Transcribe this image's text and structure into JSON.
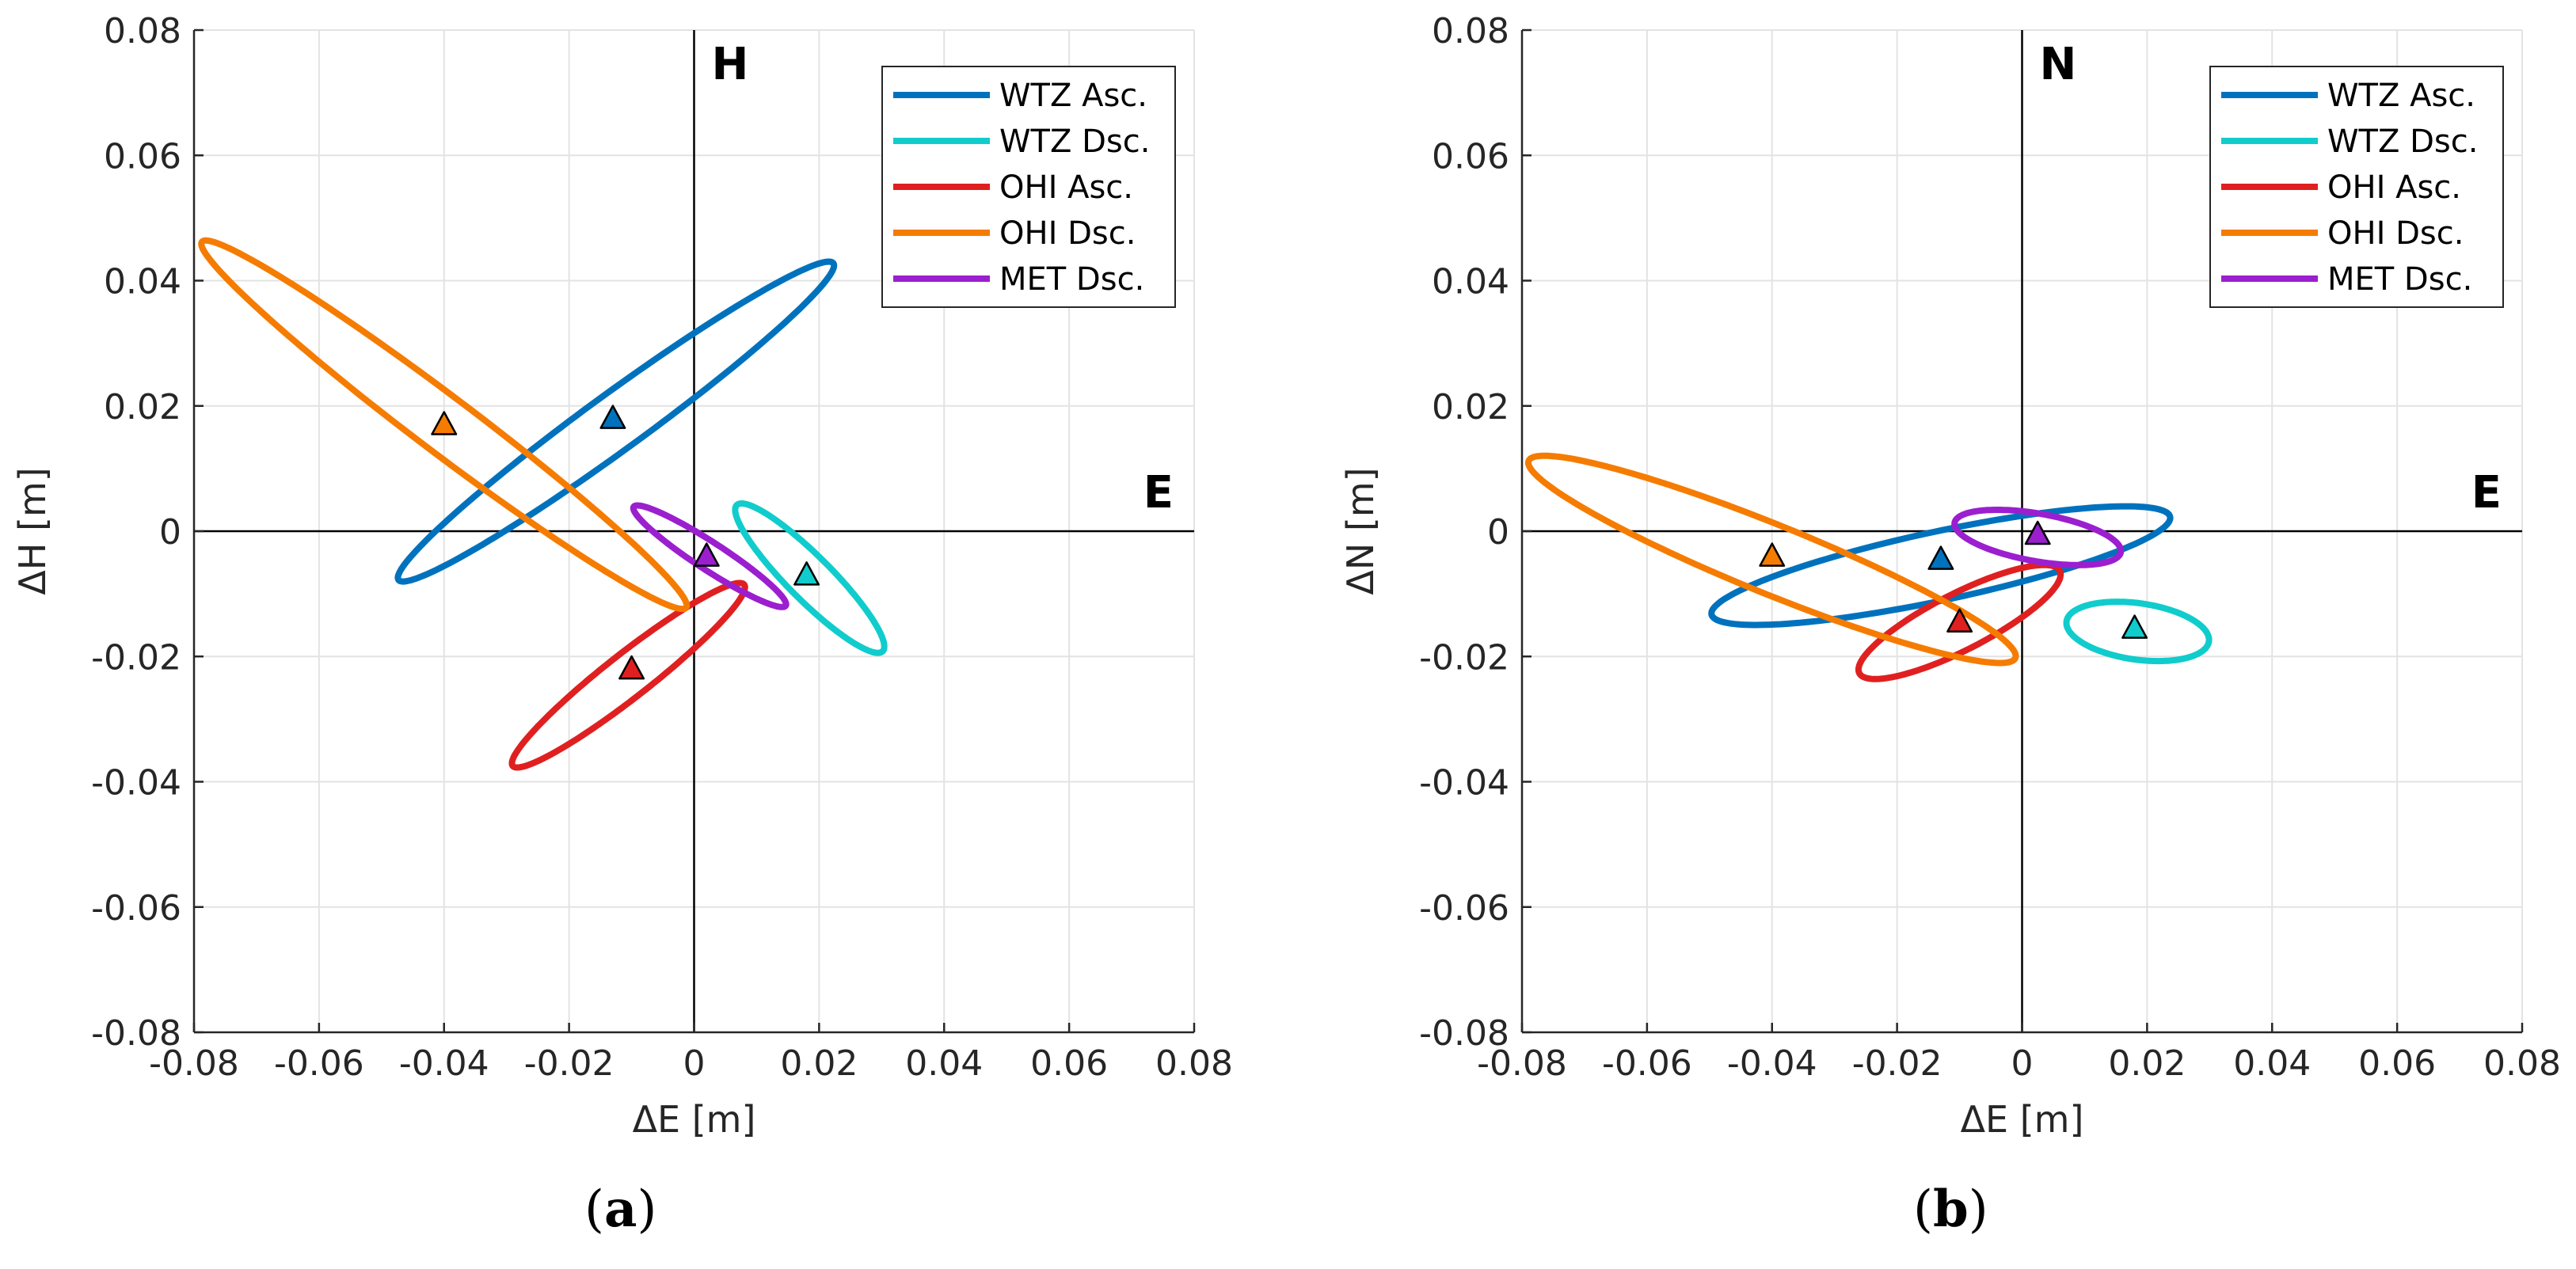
{
  "chart_data": [
    {
      "type": "scatter",
      "panel_label": "a",
      "caption_open": "(",
      "caption_close": ")",
      "xlabel": "ΔE [m]",
      "ylabel": "ΔH [m]",
      "xlim": [
        -0.08,
        0.08
      ],
      "ylim": [
        -0.08,
        0.08
      ],
      "xticks": [
        -0.08,
        -0.06,
        -0.04,
        -0.02,
        0,
        0.02,
        0.04,
        0.06,
        0.08
      ],
      "yticks": [
        -0.08,
        -0.06,
        -0.04,
        -0.02,
        0,
        0.02,
        0.04,
        0.06,
        0.08
      ],
      "xtick_labels": [
        "-0.08",
        "-0.06",
        "-0.04",
        "-0.02",
        "0",
        "0.02",
        "0.04",
        "0.06",
        "0.08"
      ],
      "ytick_labels": [
        "-0.08",
        "-0.06",
        "-0.04",
        "-0.02",
        "0",
        "0.02",
        "0.04",
        "0.06",
        "0.08"
      ],
      "grid": true,
      "corner_labels": {
        "vertical": "H",
        "horizontal": "E"
      },
      "legend_position": "top-right",
      "series": [
        {
          "name": "WTZ Asc.",
          "color": "#0072BD",
          "point": [
            -0.013,
            0.018
          ],
          "ellipse": {
            "center": [
              -0.0125,
              0.0175
            ],
            "semi_major": 0.043,
            "semi_minor": 0.0045,
            "angle_deg": 36
          }
        },
        {
          "name": "WTZ Dsc.",
          "color": "#11CCCC",
          "point": [
            0.018,
            -0.007
          ],
          "ellipse": {
            "center": [
              0.0185,
              -0.0075
            ],
            "semi_major": 0.0165,
            "semi_minor": 0.0035,
            "angle_deg": -45
          }
        },
        {
          "name": "OHI Asc.",
          "color": "#E02020",
          "point": [
            -0.01,
            -0.022
          ],
          "ellipse": {
            "center": [
              -0.0105,
              -0.023
            ],
            "semi_major": 0.0235,
            "semi_minor": 0.0035,
            "angle_deg": 38
          }
        },
        {
          "name": "OHI Dsc.",
          "color": "#F57C00",
          "point": [
            -0.04,
            0.017
          ],
          "ellipse": {
            "center": [
              -0.04,
              0.017
            ],
            "semi_major": 0.0485,
            "semi_minor": 0.0045,
            "angle_deg": -37
          }
        },
        {
          "name": "MET Dsc.",
          "color": "#9B1FCF",
          "point": [
            0.002,
            -0.004
          ],
          "ellipse": {
            "center": [
              0.0025,
              -0.004
            ],
            "semi_major": 0.0145,
            "semi_minor": 0.0022,
            "angle_deg": -33
          }
        }
      ]
    },
    {
      "type": "scatter",
      "panel_label": "b",
      "caption_open": "(",
      "caption_close": ")",
      "xlabel": "ΔE [m]",
      "ylabel": "ΔN [m]",
      "xlim": [
        -0.08,
        0.08
      ],
      "ylim": [
        -0.08,
        0.08
      ],
      "xticks": [
        -0.08,
        -0.06,
        -0.04,
        -0.02,
        0,
        0.02,
        0.04,
        0.06,
        0.08
      ],
      "yticks": [
        -0.08,
        -0.06,
        -0.04,
        -0.02,
        0,
        0.02,
        0.04,
        0.06,
        0.08
      ],
      "xtick_labels": [
        "-0.08",
        "-0.06",
        "-0.04",
        "-0.02",
        "0",
        "0.02",
        "0.04",
        "0.06",
        "0.08"
      ],
      "ytick_labels": [
        "-0.08",
        "-0.06",
        "-0.04",
        "-0.02",
        "0",
        "0.02",
        "0.04",
        "0.06",
        "0.08"
      ],
      "grid": true,
      "corner_labels": {
        "vertical": "N",
        "horizontal": "E"
      },
      "legend_position": "top-right",
      "series": [
        {
          "name": "WTZ Asc.",
          "color": "#0072BD",
          "point": [
            -0.013,
            -0.0045
          ],
          "ellipse": {
            "center": [
              -0.013,
              -0.0055
            ],
            "semi_major": 0.0375,
            "semi_minor": 0.0055,
            "angle_deg": 12
          }
        },
        {
          "name": "WTZ Dsc.",
          "color": "#11CCCC",
          "point": [
            0.018,
            -0.0155
          ],
          "ellipse": {
            "center": [
              0.0185,
              -0.016
            ],
            "semi_major": 0.0115,
            "semi_minor": 0.0045,
            "angle_deg": -8
          }
        },
        {
          "name": "OHI Asc.",
          "color": "#E02020",
          "point": [
            -0.01,
            -0.0145
          ],
          "ellipse": {
            "center": [
              -0.01,
              -0.0145
            ],
            "semi_major": 0.018,
            "semi_minor": 0.0045,
            "angle_deg": 27
          }
        },
        {
          "name": "OHI Dsc.",
          "color": "#F57C00",
          "point": [
            -0.04,
            -0.004
          ],
          "ellipse": {
            "center": [
              -0.04,
              -0.0045
            ],
            "semi_major": 0.042,
            "semi_minor": 0.0055,
            "angle_deg": -22
          }
        },
        {
          "name": "MET Dsc.",
          "color": "#9B1FCF",
          "point": [
            0.0025,
            -0.0005
          ],
          "ellipse": {
            "center": [
              0.0025,
              -0.001
            ],
            "semi_major": 0.0135,
            "semi_minor": 0.0038,
            "angle_deg": -10
          }
        }
      ]
    }
  ]
}
